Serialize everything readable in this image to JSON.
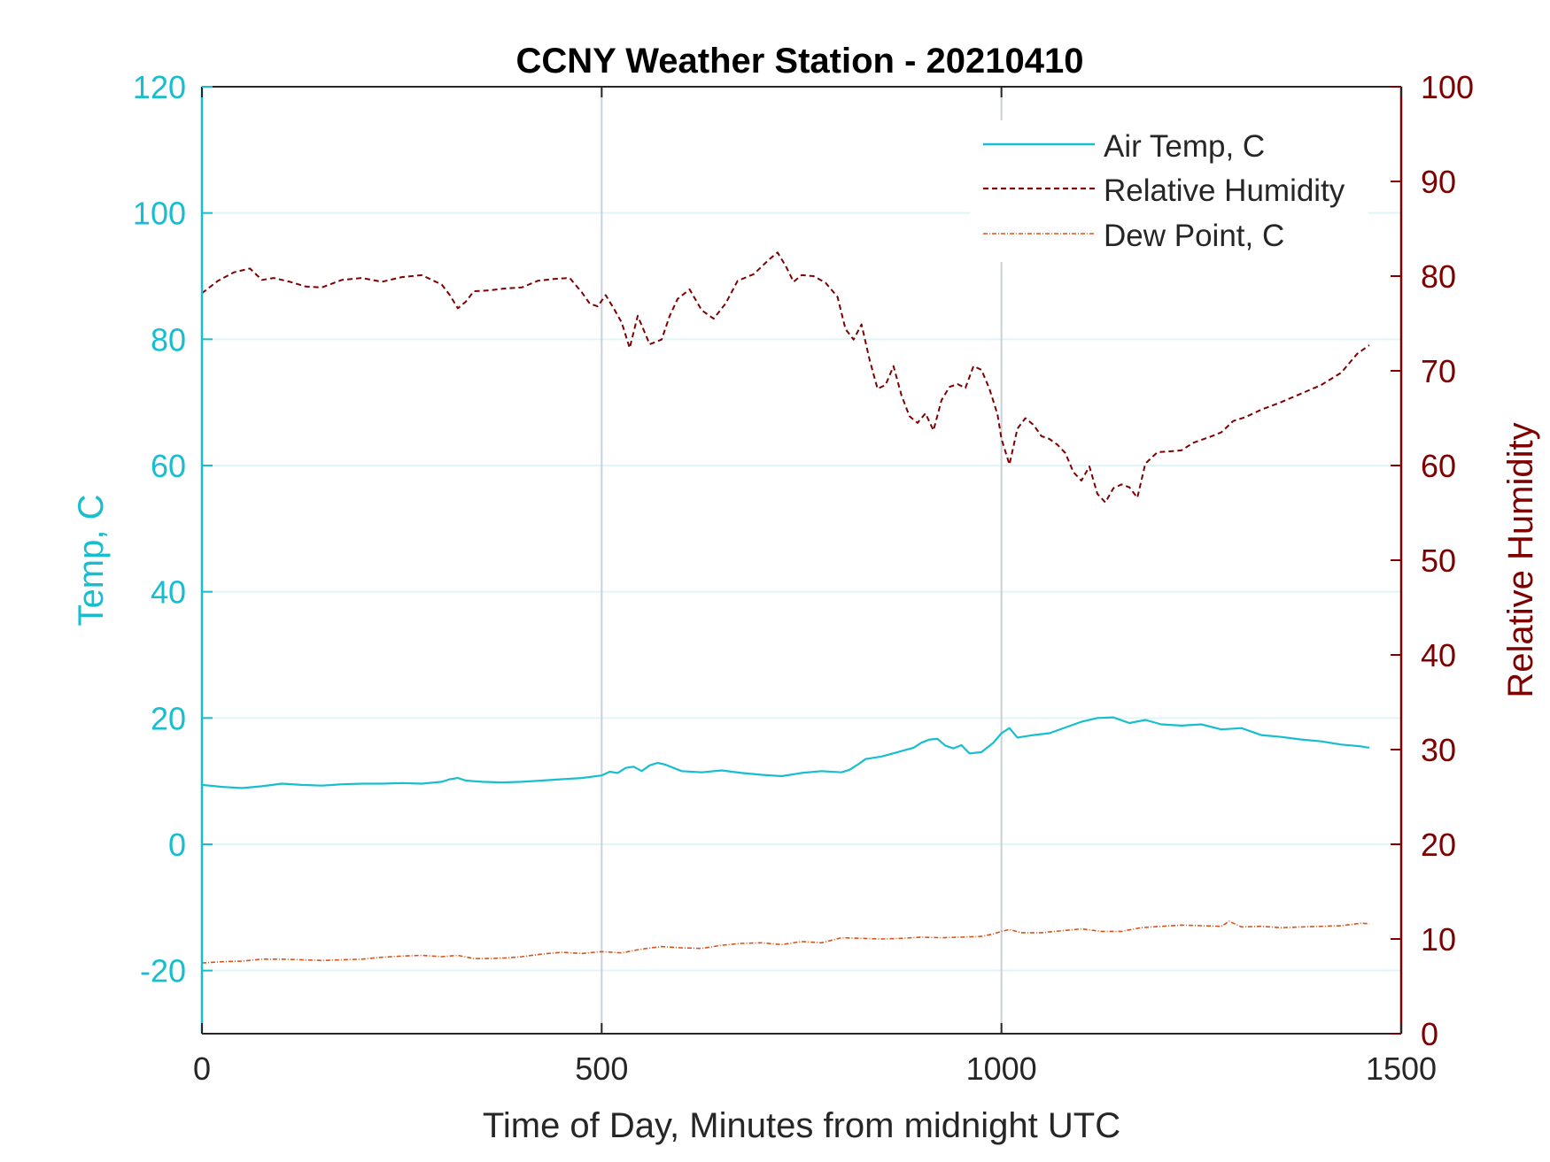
{
  "chart_data": {
    "type": "line",
    "title": "CCNY Weather Station - 20210410",
    "xlabel": "Time of Day, Minutes from midnight UTC",
    "ylabel_left": "Temp, C",
    "ylabel_right": "Relative Humidity",
    "xlim": [
      0,
      1500
    ],
    "ylim_left": [
      -30,
      120
    ],
    "ylim_right": [
      0,
      100
    ],
    "x_ticks": [
      "0",
      "500",
      "1000",
      "1500"
    ],
    "y_ticks_left": [
      "-20",
      "0",
      "20",
      "40",
      "60",
      "80",
      "100",
      "120"
    ],
    "y_ticks_right": [
      "0",
      "10",
      "20",
      "30",
      "40",
      "50",
      "60",
      "70",
      "80",
      "90",
      "100"
    ],
    "grid": true,
    "legend_position": "top-right",
    "colors": {
      "temp_axis": "#17becf",
      "rh_axis": "#7f0000",
      "air_temp": "#17becf",
      "relative_humidity": "#7f0000",
      "dew_point": "#d95319",
      "grid_x": "#c8d0d8",
      "grid_y": "#dff5f9"
    },
    "series": [
      {
        "name": "Air Temp, C",
        "axis": "left",
        "style": "solid",
        "x": [
          0,
          25,
          50,
          75,
          100,
          125,
          150,
          175,
          200,
          225,
          250,
          275,
          300,
          310,
          320,
          330,
          350,
          375,
          400,
          425,
          450,
          475,
          500,
          510,
          520,
          530,
          540,
          550,
          560,
          570,
          580,
          600,
          625,
          650,
          675,
          700,
          725,
          750,
          775,
          800,
          810,
          820,
          830,
          850,
          870,
          890,
          900,
          910,
          920,
          930,
          940,
          950,
          960,
          975,
          990,
          1000,
          1010,
          1020,
          1040,
          1060,
          1080,
          1100,
          1120,
          1140,
          1160,
          1180,
          1200,
          1225,
          1250,
          1275,
          1300,
          1325,
          1350,
          1375,
          1400,
          1425,
          1450,
          1460
        ],
        "values": [
          9.4,
          9.1,
          8.9,
          9.2,
          9.6,
          9.4,
          9.3,
          9.5,
          9.6,
          9.6,
          9.7,
          9.6,
          9.9,
          10.3,
          10.5,
          10.1,
          9.9,
          9.8,
          9.9,
          10.1,
          10.3,
          10.5,
          10.9,
          11.5,
          11.3,
          12.1,
          12.3,
          11.6,
          12.5,
          12.9,
          12.6,
          11.6,
          11.4,
          11.7,
          11.3,
          11.0,
          10.8,
          11.3,
          11.6,
          11.4,
          11.8,
          12.6,
          13.5,
          13.9,
          14.6,
          15.3,
          16.1,
          16.6,
          16.7,
          15.6,
          15.2,
          15.7,
          14.4,
          14.6,
          16.1,
          17.6,
          18.4,
          16.9,
          17.3,
          17.6,
          18.5,
          19.4,
          20.0,
          20.1,
          19.2,
          19.7,
          19.0,
          18.8,
          19.0,
          18.2,
          18.4,
          17.3,
          17.0,
          16.6,
          16.3,
          15.8,
          15.5,
          15.3
        ]
      },
      {
        "name": "Relative Humidity",
        "axis": "right",
        "style": "dashed",
        "x": [
          0,
          20,
          40,
          60,
          75,
          90,
          110,
          130,
          150,
          175,
          200,
          225,
          250,
          275,
          300,
          310,
          320,
          330,
          340,
          360,
          380,
          400,
          420,
          440,
          460,
          475,
          485,
          495,
          505,
          515,
          525,
          535,
          545,
          560,
          575,
          585,
          595,
          610,
          625,
          640,
          655,
          670,
          690,
          710,
          720,
          730,
          740,
          750,
          765,
          780,
          795,
          805,
          815,
          825,
          835,
          845,
          855,
          865,
          875,
          885,
          895,
          905,
          915,
          925,
          935,
          945,
          955,
          965,
          975,
          985,
          995,
          1000,
          1010,
          1020,
          1030,
          1040,
          1050,
          1060,
          1070,
          1080,
          1090,
          1100,
          1110,
          1120,
          1130,
          1140,
          1150,
          1160,
          1170,
          1180,
          1195,
          1210,
          1225,
          1240,
          1260,
          1275,
          1290,
          1305,
          1325,
          1350,
          1375,
          1400,
          1425,
          1445,
          1460
        ],
        "values": [
          78.2,
          79.5,
          80.4,
          80.8,
          79.6,
          79.8,
          79.4,
          78.9,
          78.8,
          79.6,
          79.8,
          79.4,
          79.9,
          80.1,
          79.1,
          78.0,
          76.6,
          77.3,
          78.4,
          78.5,
          78.7,
          78.8,
          79.5,
          79.7,
          79.8,
          78.3,
          77.1,
          76.8,
          78.0,
          76.6,
          75.1,
          72.4,
          75.8,
          72.8,
          73.3,
          75.8,
          77.6,
          78.6,
          76.4,
          75.5,
          77.1,
          79.5,
          80.2,
          81.8,
          82.5,
          81.1,
          79.4,
          80.1,
          80.0,
          79.3,
          77.8,
          74.4,
          73.3,
          74.9,
          71.2,
          68.1,
          68.5,
          70.5,
          67.4,
          65.2,
          64.5,
          65.5,
          63.7,
          66.9,
          68.3,
          68.6,
          68.2,
          70.5,
          70.1,
          68.1,
          65.4,
          62.8,
          60.1,
          63.9,
          65.0,
          64.3,
          63.1,
          62.8,
          62.2,
          61.3,
          59.3,
          58.4,
          59.9,
          57.0,
          56.1,
          57.6,
          58.0,
          57.7,
          56.6,
          60.2,
          61.4,
          61.5,
          61.6,
          62.4,
          63.0,
          63.5,
          64.7,
          65.1,
          65.9,
          66.7,
          67.6,
          68.5,
          69.8,
          71.8,
          72.7
        ]
      },
      {
        "name": "Dew Point, C",
        "axis": "left",
        "style": "dashdot",
        "x": [
          0,
          25,
          50,
          75,
          100,
          125,
          150,
          175,
          200,
          225,
          250,
          275,
          300,
          320,
          340,
          360,
          380,
          400,
          425,
          450,
          475,
          500,
          525,
          550,
          575,
          600,
          625,
          650,
          675,
          700,
          725,
          750,
          775,
          800,
          825,
          850,
          875,
          900,
          925,
          950,
          975,
          990,
          1000,
          1010,
          1025,
          1050,
          1075,
          1100,
          1125,
          1150,
          1175,
          1200,
          1225,
          1250,
          1275,
          1285,
          1300,
          1325,
          1350,
          1375,
          1400,
          1425,
          1450,
          1460
        ],
        "values": [
          -18.8,
          -18.6,
          -18.5,
          -18.2,
          -18.2,
          -18.3,
          -18.4,
          -18.3,
          -18.2,
          -17.9,
          -17.7,
          -17.6,
          -17.8,
          -17.6,
          -18.1,
          -18.1,
          -18.0,
          -17.8,
          -17.4,
          -17.1,
          -17.3,
          -17.0,
          -17.2,
          -16.6,
          -16.2,
          -16.4,
          -16.5,
          -16.0,
          -15.7,
          -15.6,
          -15.9,
          -15.4,
          -15.6,
          -14.8,
          -14.9,
          -15.0,
          -14.9,
          -14.7,
          -14.8,
          -14.7,
          -14.6,
          -14.2,
          -13.8,
          -13.5,
          -14.0,
          -14.0,
          -13.7,
          -13.4,
          -13.8,
          -13.8,
          -13.2,
          -13.0,
          -12.8,
          -12.9,
          -13.0,
          -12.2,
          -13.1,
          -13.0,
          -13.2,
          -13.1,
          -13.0,
          -12.9,
          -12.5,
          -12.6
        ]
      }
    ]
  }
}
